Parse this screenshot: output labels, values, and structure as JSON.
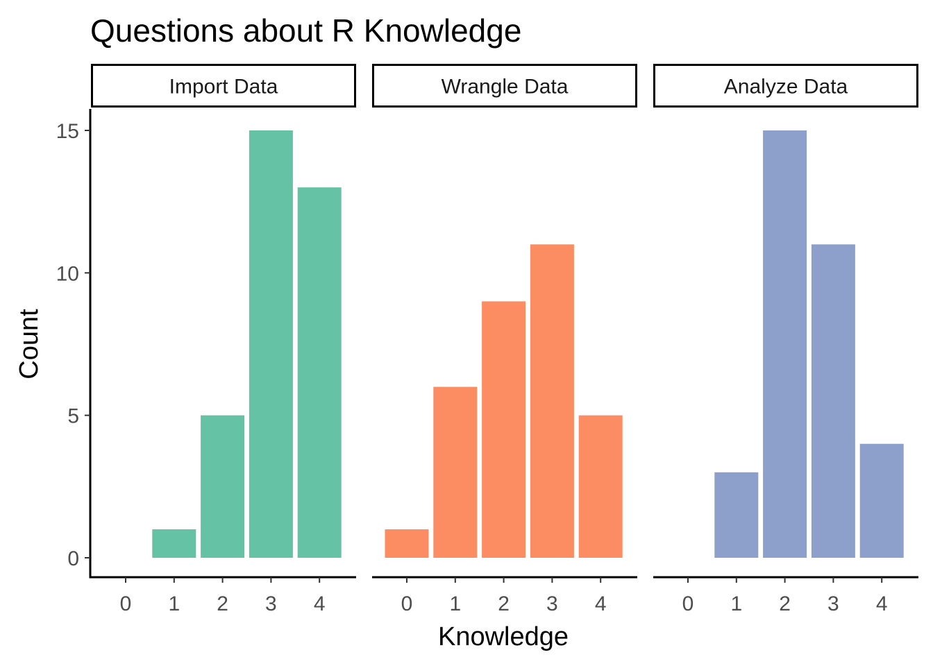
{
  "chart_data": {
    "type": "bar",
    "title": "Questions about R Knowledge",
    "xlabel": "Knowledge",
    "ylabel": "Count",
    "categories": [
      "0",
      "1",
      "2",
      "3",
      "4"
    ],
    "ylim": [
      0,
      15.75
    ],
    "yticks": [
      "0",
      "5",
      "10",
      "15"
    ],
    "grid": false,
    "legend": "none",
    "panels": [
      {
        "name": "Import Data",
        "color": "#66c2a5",
        "values": [
          0,
          1,
          5,
          15,
          13
        ]
      },
      {
        "name": "Wrangle Data",
        "color": "#fc8d62",
        "values": [
          1,
          6,
          9,
          11,
          5
        ]
      },
      {
        "name": "Analyze Data",
        "color": "#8da0cb",
        "values": [
          0,
          3,
          15,
          11,
          4
        ]
      }
    ]
  }
}
